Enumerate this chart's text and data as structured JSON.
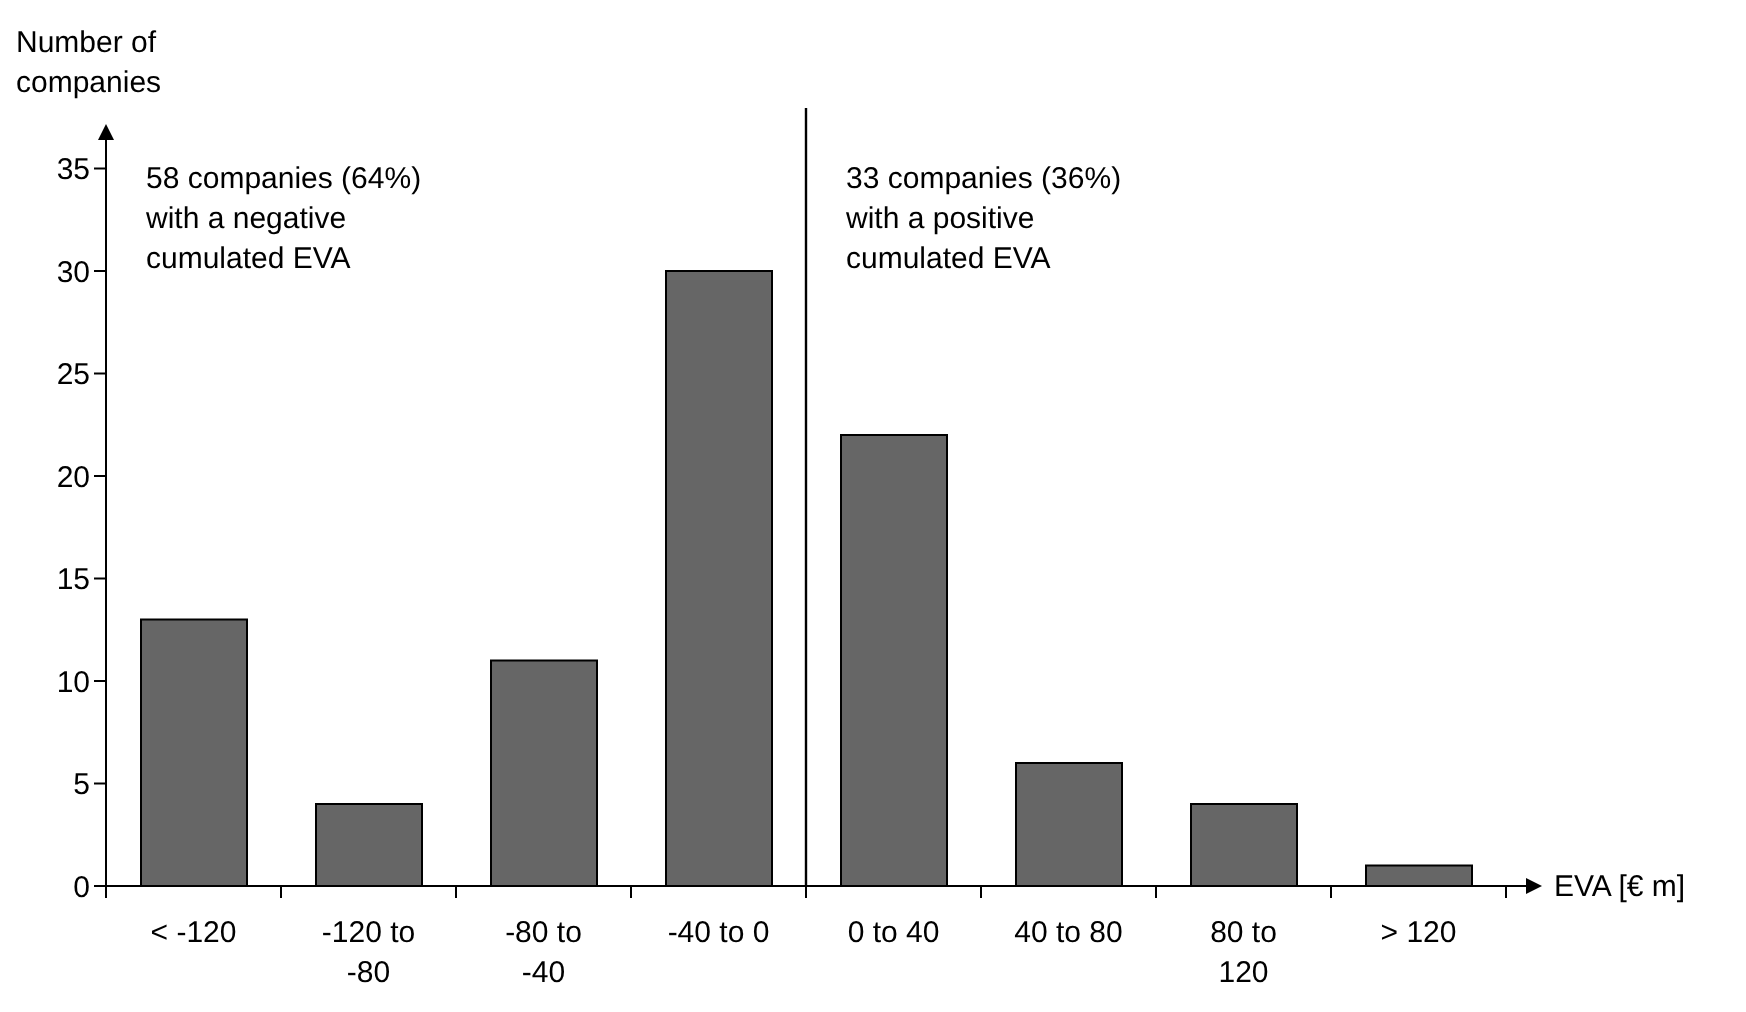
{
  "chart_data": {
    "type": "bar",
    "xlabel": "EVA [€ m]",
    "ylabel": "Number of companies",
    "categories": [
      "< -120",
      "-120 to -80",
      "-80 to -40",
      "-40 to 0",
      "0 to 40",
      "40 to 80",
      "80 to 120",
      "> 120"
    ],
    "values": [
      13,
      4,
      11,
      30,
      22,
      6,
      4,
      1
    ],
    "color": "#666666",
    "ylim": [
      0,
      36
    ],
    "yticks": [
      0,
      5,
      10,
      15,
      20,
      25,
      30,
      35
    ],
    "annotations": [
      "58 companies (64%) with a negative cumulated EVA",
      "33 companies (36%) with a positive cumulated EVA"
    ]
  }
}
